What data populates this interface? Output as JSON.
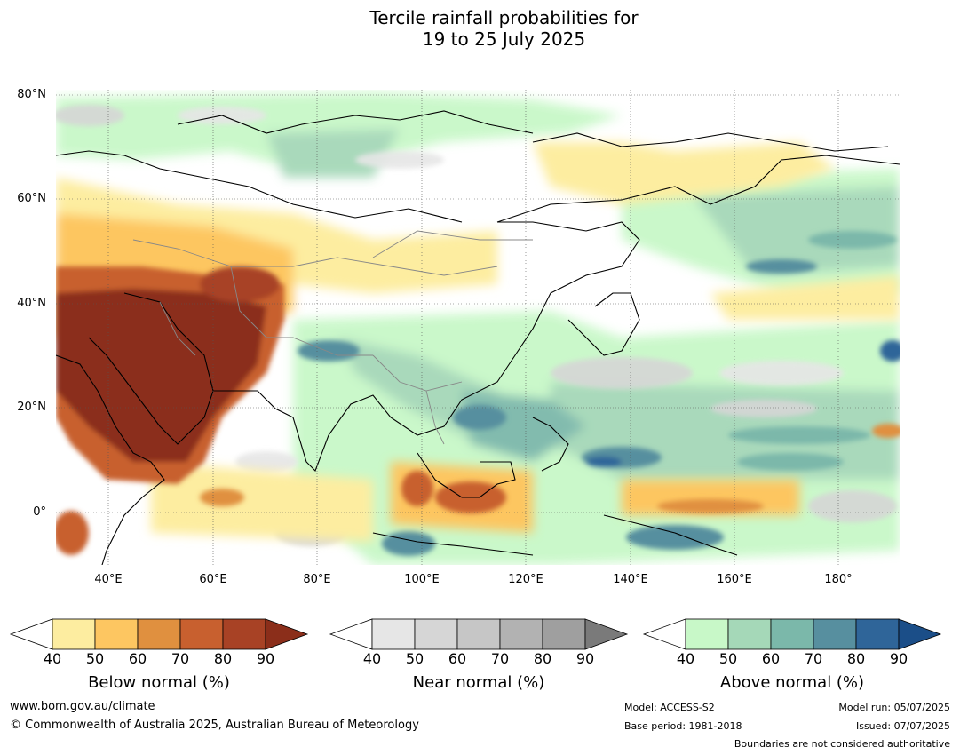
{
  "title_line1": "Tercile rainfall probabilities for",
  "title_line2": "19 to 25 July 2025",
  "lat_labels": [
    "80°N",
    "60°N",
    "40°N",
    "20°N",
    "0°"
  ],
  "lon_labels": [
    "40°E",
    "60°E",
    "80°E",
    "100°E",
    "120°E",
    "140°E",
    "160°E",
    "180°"
  ],
  "colorbars": [
    {
      "label": "Below normal (%)",
      "ticks": [
        "40",
        "50",
        "60",
        "70",
        "80",
        "90"
      ],
      "colors": [
        "#fdeda0",
        "#fdc661",
        "#e0903f",
        "#c8602f",
        "#a84225",
        "#8b2e1a"
      ]
    },
    {
      "label": "Near normal (%)",
      "ticks": [
        "40",
        "50",
        "60",
        "70",
        "80",
        "90"
      ],
      "colors": [
        "#e6e6e6",
        "#d6d6d6",
        "#c6c6c6",
        "#b2b2b2",
        "#9f9f9f",
        "#7a7a7a"
      ]
    },
    {
      "label": "Above normal (%)",
      "ticks": [
        "40",
        "50",
        "60",
        "70",
        "80",
        "90"
      ],
      "colors": [
        "#c8f8c8",
        "#a5d8b8",
        "#7bb8aa",
        "#578f9f",
        "#2f6599",
        "#1b4e88"
      ]
    }
  ],
  "footer": {
    "url": "www.bom.gov.au/climate",
    "copyright": "© Commonwealth of Australia 2025, Australian Bureau of Meteorology",
    "model": "Model: ACCESS-S2",
    "base_period": "Base period: 1981-2018",
    "model_run": "Model run: 05/07/2025",
    "issued": "Issued: 07/07/2025",
    "boundaries": "Boundaries are not considered authoritative"
  }
}
